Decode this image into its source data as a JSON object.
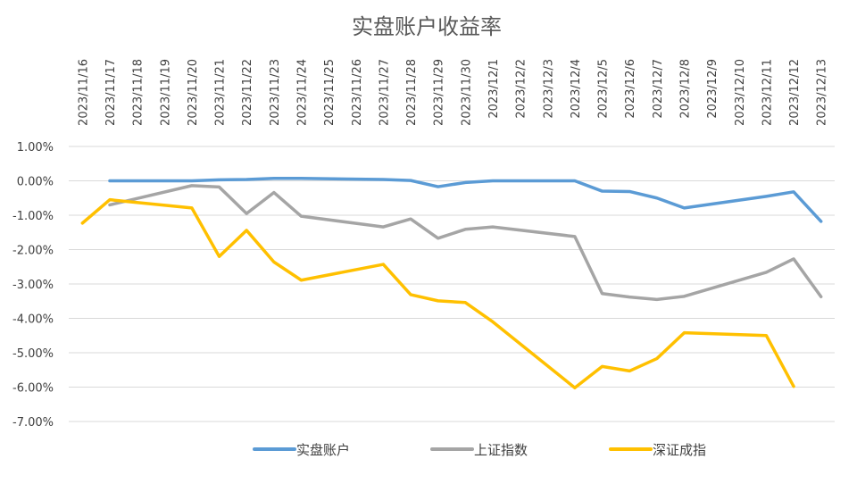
{
  "chart_data": {
    "type": "line",
    "title": "实盘账户收益率",
    "xlabel": "",
    "ylabel": "",
    "x": [
      "2023/11/16",
      "2023/11/17",
      "2023/11/18",
      "2023/11/19",
      "2023/11/20",
      "2023/11/21",
      "2023/11/22",
      "2023/11/23",
      "2023/11/24",
      "2023/11/25",
      "2023/11/26",
      "2023/11/27",
      "2023/11/28",
      "2023/11/29",
      "2023/11/30",
      "2023/12/1",
      "2023/12/2",
      "2023/12/3",
      "2023/12/4",
      "2023/12/5",
      "2023/12/6",
      "2023/12/7",
      "2023/12/8",
      "2023/12/9",
      "2023/12/10",
      "2023/12/11",
      "2023/12/12",
      "2023/12/13"
    ],
    "yticks": [
      1,
      0,
      -1,
      -2,
      -3,
      -4,
      -5,
      -6,
      -7
    ],
    "ytick_labels": [
      "1.00%",
      "0.00%",
      "-1.00%",
      "-2.00%",
      "-3.00%",
      "-4.00%",
      "-5.00%",
      "-6.00%",
      "-7.00%"
    ],
    "ylim": [
      -7,
      1
    ],
    "grid": true,
    "x_axis_position": "top",
    "legend_position": "bottom",
    "series": [
      {
        "name": "实盘账户",
        "color": "#5B9BD5",
        "values": [
          null,
          0,
          null,
          null,
          0,
          0.03,
          0.04,
          0.07,
          0.07,
          null,
          null,
          0.04,
          0.01,
          -0.17,
          -0.05,
          0,
          null,
          null,
          0,
          -0.3,
          -0.31,
          -0.5,
          -0.79,
          null,
          null,
          -0.45,
          -0.32,
          -1.18
        ]
      },
      {
        "name": "上证指数",
        "color": "#A5A5A5",
        "values": [
          null,
          -0.7,
          null,
          null,
          -0.14,
          -0.18,
          -0.95,
          -0.34,
          -1.03,
          null,
          null,
          -1.34,
          -1.11,
          -1.67,
          -1.41,
          -1.34,
          null,
          null,
          -1.62,
          -3.28,
          -3.38,
          -3.45,
          -3.36,
          null,
          null,
          -2.66,
          -2.27,
          -3.37
        ]
      },
      {
        "name": "深证成指",
        "color": "#FFC000",
        "values": [
          -1.23,
          -0.55,
          null,
          null,
          -0.79,
          -2.2,
          -1.44,
          -2.36,
          -2.89,
          null,
          null,
          -2.43,
          -3.31,
          -3.49,
          -3.54,
          -4.1,
          null,
          null,
          -6.02,
          -5.4,
          -5.53,
          -5.17,
          -4.42,
          null,
          null,
          -4.5,
          -5.98,
          null
        ]
      }
    ]
  }
}
